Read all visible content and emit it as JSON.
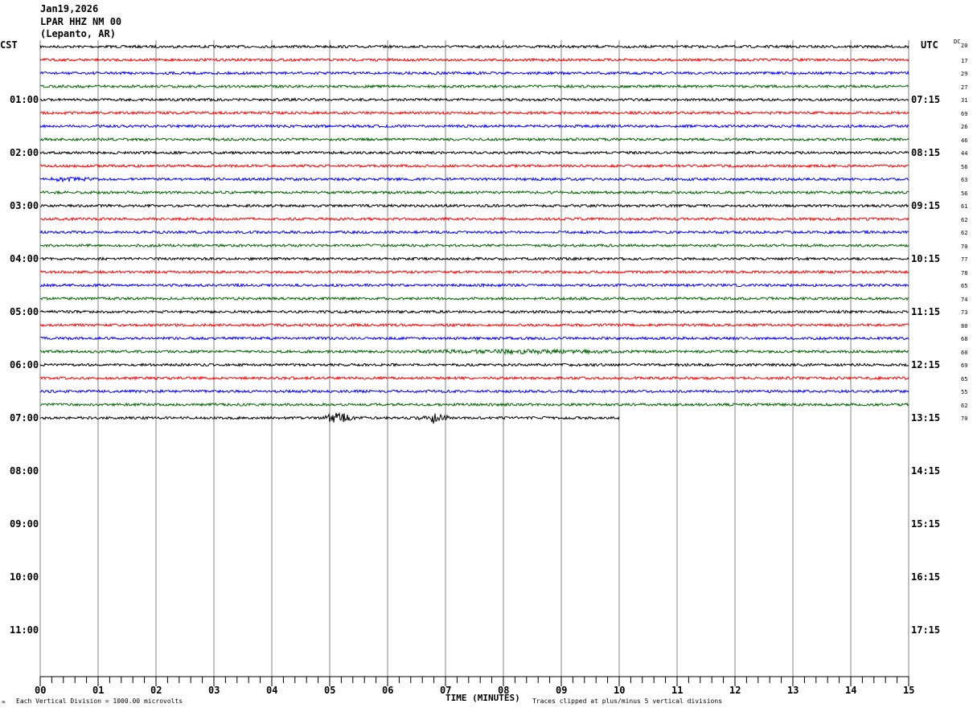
{
  "header": {
    "date": "Jan19,2026",
    "station": "LPAR HHZ NM 00",
    "location": "(Lepanto, AR)",
    "left_tz": "CST",
    "right_tz": "UTC",
    "dc_label": "DC"
  },
  "chart_data": {
    "type": "line",
    "subtype": "helicorder",
    "xlabel": "TIME (MINUTES)",
    "x_ticks": [
      "00",
      "01",
      "02",
      "03",
      "04",
      "05",
      "06",
      "07",
      "08",
      "09",
      "10",
      "11",
      "12",
      "13",
      "14",
      "15"
    ],
    "xlim": [
      0,
      15
    ],
    "grid": "vertical minute lines",
    "trace_colors": [
      "#000000",
      "#ff0000",
      "#0000ff",
      "#006400"
    ],
    "left_hour_labels": [
      "01:00",
      "02:00",
      "03:00",
      "04:00",
      "05:00",
      "06:00",
      "07:00",
      "08:00",
      "09:00",
      "10:00",
      "11:00"
    ],
    "right_hour_labels": [
      "07:15",
      "08:15",
      "09:15",
      "10:15",
      "11:15",
      "12:15",
      "13:15",
      "14:15",
      "15:15",
      "16:15",
      "17:15"
    ],
    "dc_offsets": [
      20,
      17,
      29,
      27,
      31,
      69,
      26,
      46,
      44,
      56,
      63,
      56,
      61,
      62,
      62,
      70,
      77,
      78,
      65,
      74,
      73,
      80,
      68,
      60,
      69,
      65,
      55,
      62,
      70
    ],
    "last_trace_end_minute": 10,
    "events": [
      {
        "trace_index": 10,
        "start_minute": 0,
        "end_minute": 1
      },
      {
        "trace_index": 23,
        "start_minute": 6,
        "end_minute": 10.5
      },
      {
        "trace_index": 28,
        "start_minute": 4.8,
        "end_minute": 5.5
      },
      {
        "trace_index": 28,
        "start_minute": 6.5,
        "end_minute": 7.1
      }
    ]
  },
  "footer": {
    "scale_note": "Each Vertical Division = 1000.00 microvolts",
    "clip_note": "Traces clipped at plus/minus 5 vertical divisions",
    "corner_mark": "ᴊᴋ"
  }
}
